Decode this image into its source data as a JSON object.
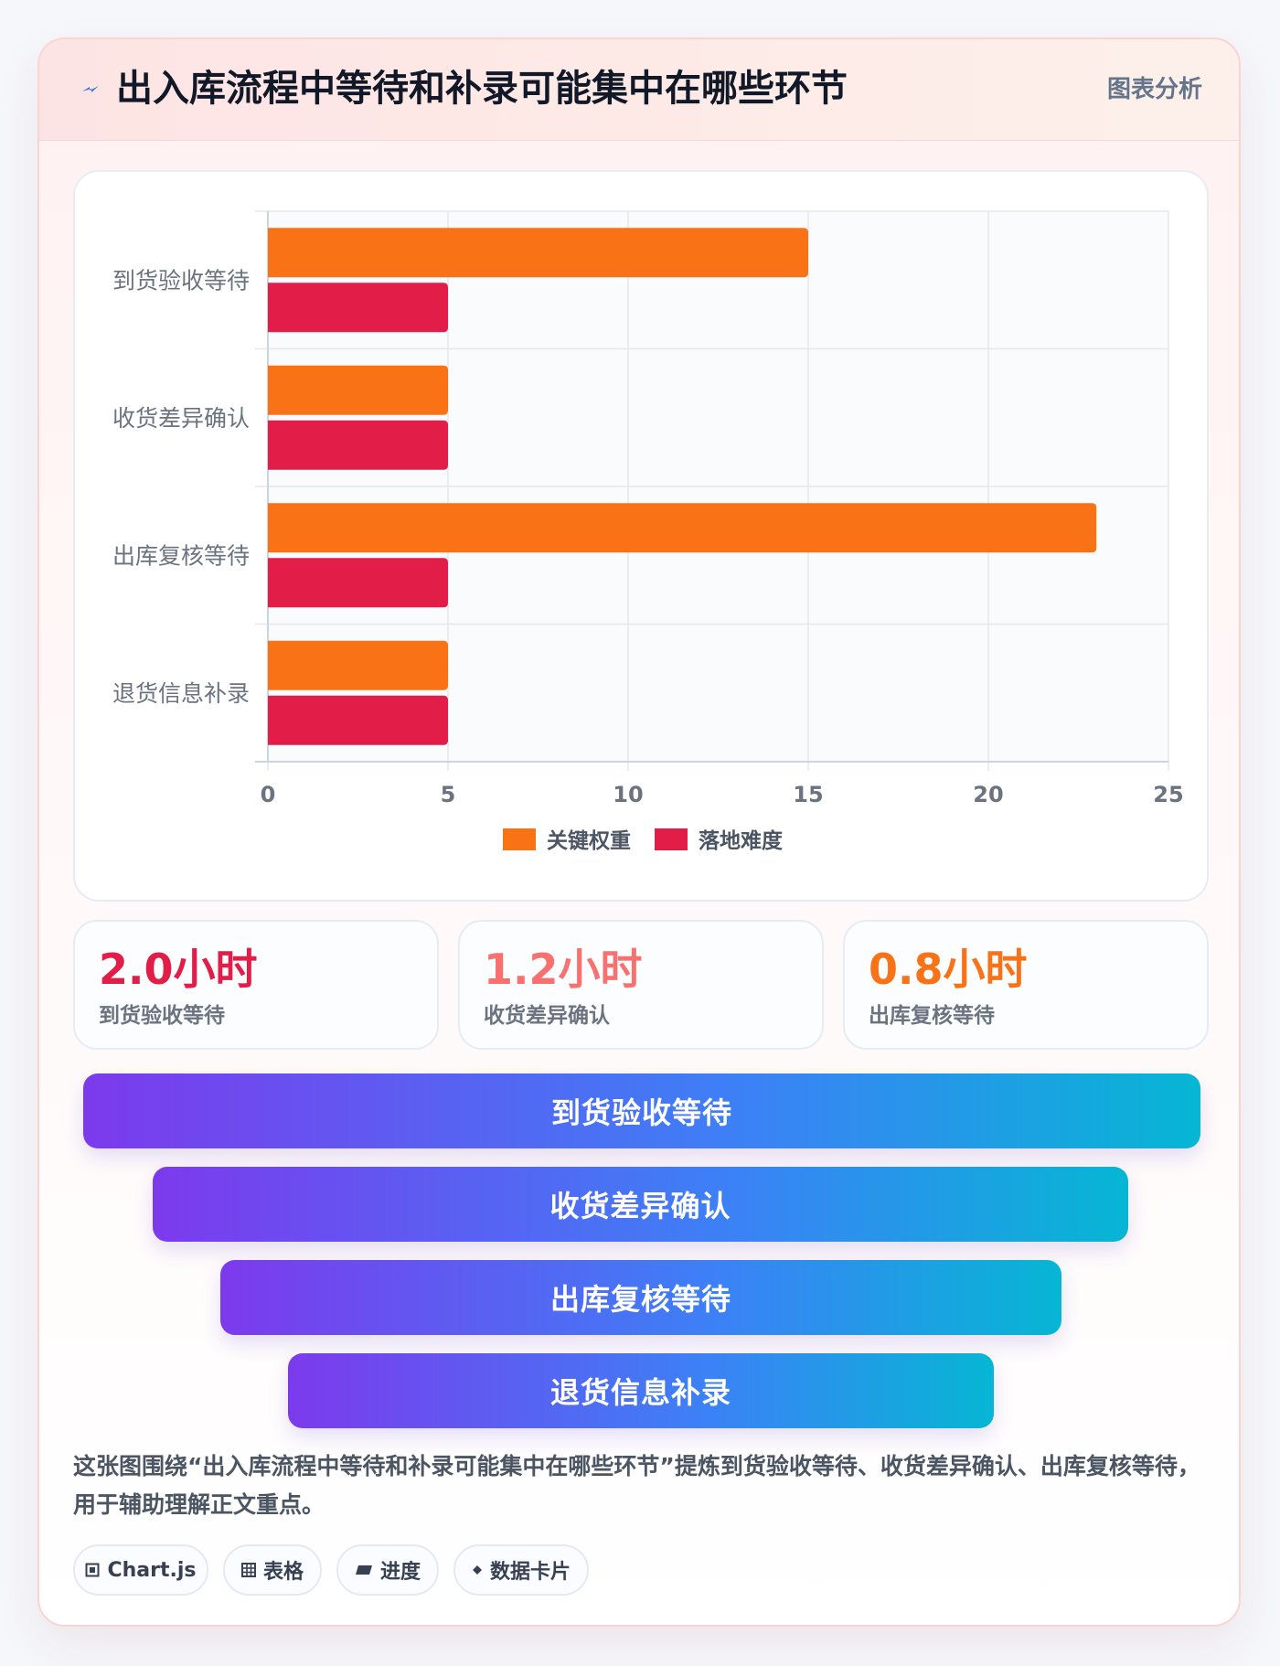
{
  "header": {
    "title": "出入库流程中等待和补录可能集中在哪些环节",
    "tag": "图表分析"
  },
  "colors": {
    "weight": "#f97316",
    "difficulty": "#e11d48",
    "stat1": "#e11d48",
    "stat2": "#f87171",
    "stat3": "#f97316"
  },
  "chart_data": {
    "type": "bar",
    "orientation": "horizontal",
    "categories": [
      "到货验收等待",
      "收货差异确认",
      "出库复核等待",
      "退货信息补录"
    ],
    "series": [
      {
        "name": "关键权重",
        "values": [
          15,
          5,
          23,
          5
        ],
        "color": "#f97316"
      },
      {
        "name": "落地难度",
        "values": [
          5,
          5,
          5,
          5
        ],
        "color": "#e11d48"
      }
    ],
    "xlim": [
      0,
      25
    ],
    "xticks": [
      "0",
      "5",
      "10",
      "15",
      "20",
      "25"
    ],
    "grid": true,
    "legend_position": "bottom"
  },
  "stats": [
    {
      "value": "2.0小时",
      "label": "到货验收等待"
    },
    {
      "value": "1.2小时",
      "label": "收货差异确认"
    },
    {
      "value": "0.8小时",
      "label": "出库复核等待"
    }
  ],
  "funnel": [
    "到货验收等待",
    "收货差异确认",
    "出库复核等待",
    "退货信息补录"
  ],
  "summary": "这张图围绕“出入库流程中等待和补录可能集中在哪些环节”提炼到货验收等待、收货差异确认、出库复核等待，用于辅助理解正文重点。",
  "chips": [
    {
      "icon": "chip-icon",
      "label": "Chart.js"
    },
    {
      "icon": "table-icon",
      "label": "表格"
    },
    {
      "icon": "progress-icon",
      "label": "进度"
    },
    {
      "icon": "diamond-icon",
      "label": "数据卡片"
    }
  ]
}
